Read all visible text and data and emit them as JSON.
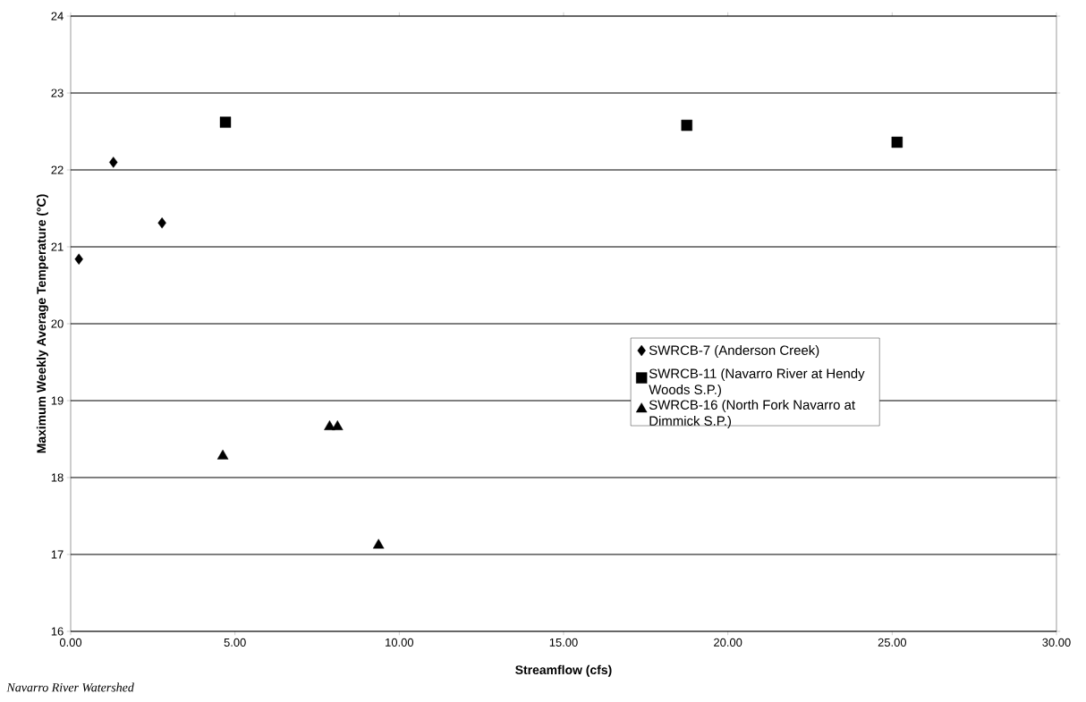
{
  "chart_data": {
    "type": "scatter",
    "xlabel": "Streamflow (cfs)",
    "ylabel": "Maximum Weekly Average Temperature (°C)",
    "annotations": [
      "Navarro River Watershed"
    ],
    "xlim": [
      0,
      30
    ],
    "ylim": [
      16,
      24
    ],
    "xticks": [
      {
        "value": 0,
        "label": "0.00"
      },
      {
        "value": 5,
        "label": "5.00"
      },
      {
        "value": 10,
        "label": "10.00"
      },
      {
        "value": 15,
        "label": "15.00"
      },
      {
        "value": 20,
        "label": "20.00"
      },
      {
        "value": 25,
        "label": "25.00"
      },
      {
        "value": 30,
        "label": "30.00"
      }
    ],
    "yticks": [
      16,
      17,
      18,
      19,
      20,
      21,
      22,
      23,
      24
    ],
    "grid": "y",
    "legend": "right",
    "series": [
      {
        "name": "SWRCB-7 (Anderson Creek)",
        "color": "#000000",
        "marker": "diamond",
        "x": [
          0.25,
          1.3,
          2.78
        ],
        "values": [
          20.84,
          22.1,
          21.31
        ]
      },
      {
        "name": "SWRCB-11 (Navarro River at Hendy Woods S.P.)",
        "color": "#000000",
        "marker": "square",
        "x": [
          4.71,
          18.75,
          25.15
        ],
        "values": [
          22.62,
          22.58,
          22.36
        ]
      },
      {
        "name": "SWRCB-16 (North Fork Navarro at Dimmick S.P.)",
        "color": "#000000",
        "marker": "triangle",
        "x": [
          4.63,
          7.88,
          8.12,
          9.37
        ],
        "values": [
          18.28,
          18.66,
          18.66,
          17.12
        ]
      }
    ]
  }
}
